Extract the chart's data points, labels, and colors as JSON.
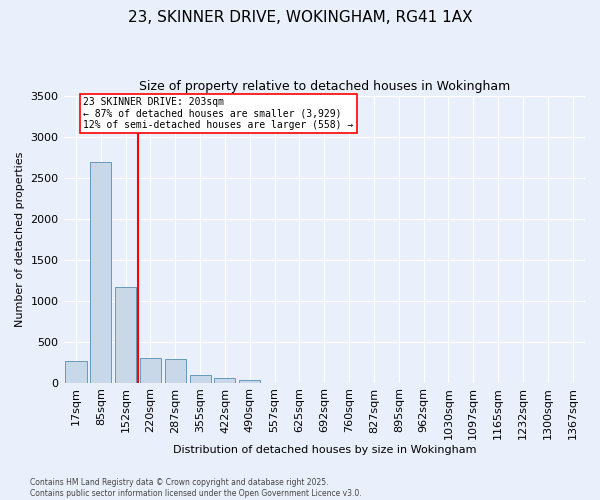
{
  "title": "23, SKINNER DRIVE, WOKINGHAM, RG41 1AX",
  "subtitle": "Size of property relative to detached houses in Wokingham",
  "xlabel": "Distribution of detached houses by size in Wokingham",
  "ylabel": "Number of detached properties",
  "categories": [
    "17sqm",
    "85sqm",
    "152sqm",
    "220sqm",
    "287sqm",
    "355sqm",
    "422sqm",
    "490sqm",
    "557sqm",
    "625sqm",
    "692sqm",
    "760sqm",
    "827sqm",
    "895sqm",
    "962sqm",
    "1030sqm",
    "1097sqm",
    "1165sqm",
    "1232sqm",
    "1300sqm",
    "1367sqm"
  ],
  "values": [
    265,
    2690,
    1165,
    295,
    290,
    90,
    60,
    35,
    0,
    0,
    0,
    0,
    0,
    0,
    0,
    0,
    0,
    0,
    0,
    0,
    0
  ],
  "bar_color": "#c8d8e8",
  "bar_edge_color": "#6699bb",
  "vline_color": "red",
  "annotation_text": "23 SKINNER DRIVE: 203sqm\n← 87% of detached houses are smaller (3,929)\n12% of semi-detached houses are larger (558) →",
  "annotation_box_color": "white",
  "annotation_box_edge": "red",
  "ylim": [
    0,
    3500
  ],
  "yticks": [
    0,
    500,
    1000,
    1500,
    2000,
    2500,
    3000,
    3500
  ],
  "background_color": "#eaf0fb",
  "plot_bg_color": "#eaf0fb",
  "grid_color": "white",
  "title_fontsize": 11,
  "subtitle_fontsize": 9,
  "footer_text": "Contains HM Land Registry data © Crown copyright and database right 2025.\nContains public sector information licensed under the Open Government Licence v3.0."
}
